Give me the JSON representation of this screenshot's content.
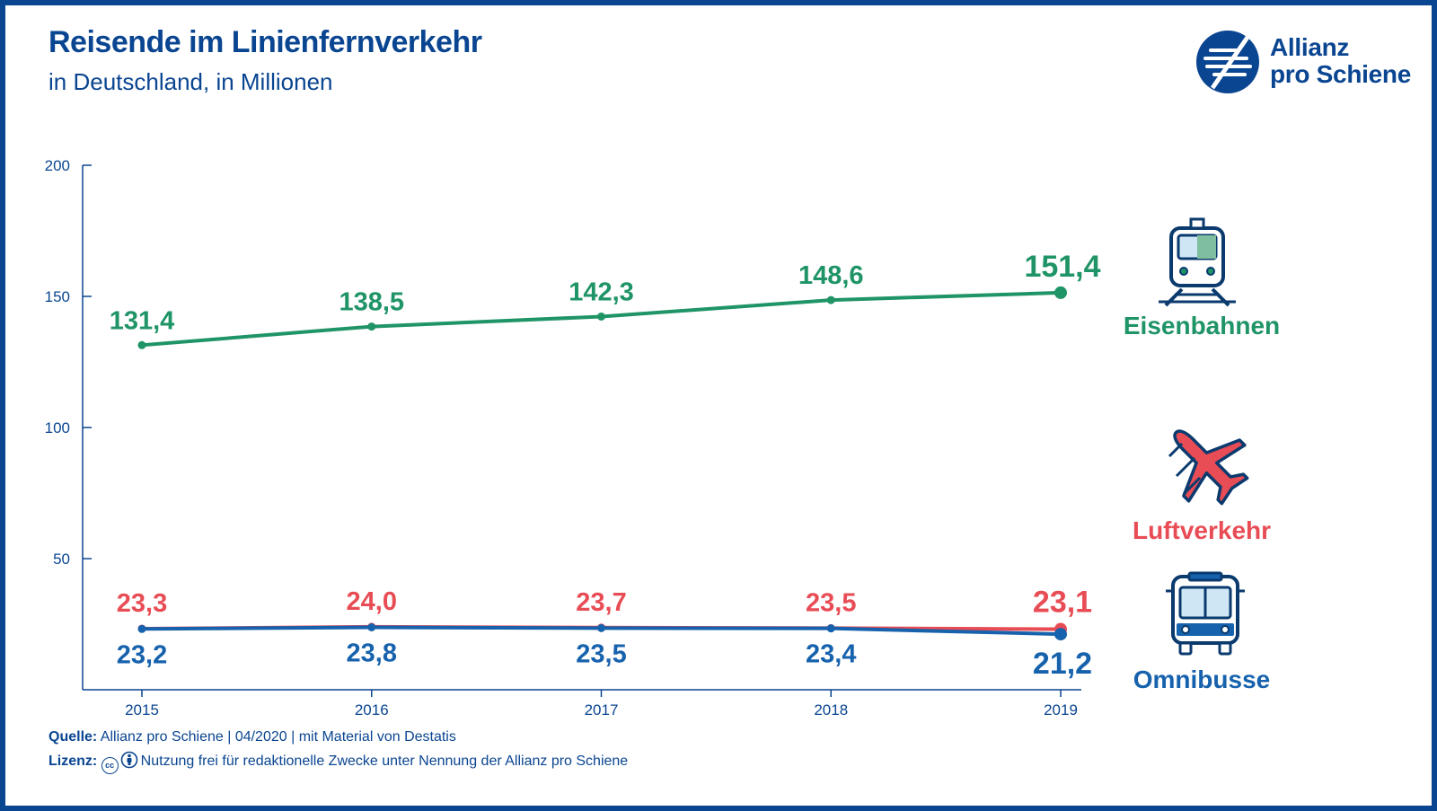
{
  "header": {
    "title": "Reisende im Linienfernverkehr",
    "subtitle": "in Deutschland, in Millionen"
  },
  "logo": {
    "line1": "Allianz",
    "line2": "pro Schiene"
  },
  "legend": [
    {
      "label": "Eisenbahnen",
      "icon": "train-icon",
      "color": "#1f9466"
    },
    {
      "label": "Luftverkehr",
      "icon": "airplane-icon",
      "color": "#e84c55"
    },
    {
      "label": "Omnibusse",
      "icon": "bus-icon",
      "color": "#1762ad"
    }
  ],
  "footer": {
    "source_label": "Quelle:",
    "source_text": "Allianz pro Schiene | 04/2020 | mit Material von Destatis",
    "license_label": "Lizenz:",
    "license_cc": "cc",
    "license_text": "Nutzung frei für redaktionelle Zwecke unter Nennung der Allianz pro Schiene"
  },
  "colors": {
    "brand": "#0a4591",
    "rail": "#1f9466",
    "air": "#e84c55",
    "bus": "#1762ad"
  },
  "chart_data": {
    "type": "line",
    "title": "Reisende im Linienfernverkehr",
    "subtitle": "in Deutschland, in Millionen",
    "categories": [
      "2015",
      "2016",
      "2017",
      "2018",
      "2019"
    ],
    "ylim": [
      0,
      200
    ],
    "yticks": [
      50,
      100,
      150,
      200
    ],
    "grid": false,
    "legend_position": "right",
    "series": [
      {
        "name": "Eisenbahnen",
        "color": "#1f9466",
        "values": [
          131.4,
          138.5,
          142.3,
          148.6,
          151.4
        ],
        "labels": [
          "131,4",
          "138,5",
          "142,3",
          "148,6",
          "151,4"
        ],
        "label_side": "above"
      },
      {
        "name": "Luftverkehr",
        "color": "#e84c55",
        "values": [
          23.3,
          24.0,
          23.7,
          23.5,
          23.1
        ],
        "labels": [
          "23,3",
          "24,0",
          "23,7",
          "23,5",
          "23,1"
        ],
        "label_side": "above"
      },
      {
        "name": "Omnibusse",
        "color": "#1762ad",
        "values": [
          23.2,
          23.8,
          23.5,
          23.4,
          21.2
        ],
        "labels": [
          "23,2",
          "23,8",
          "23,5",
          "23,4",
          "21,2"
        ],
        "label_side": "below"
      }
    ]
  }
}
